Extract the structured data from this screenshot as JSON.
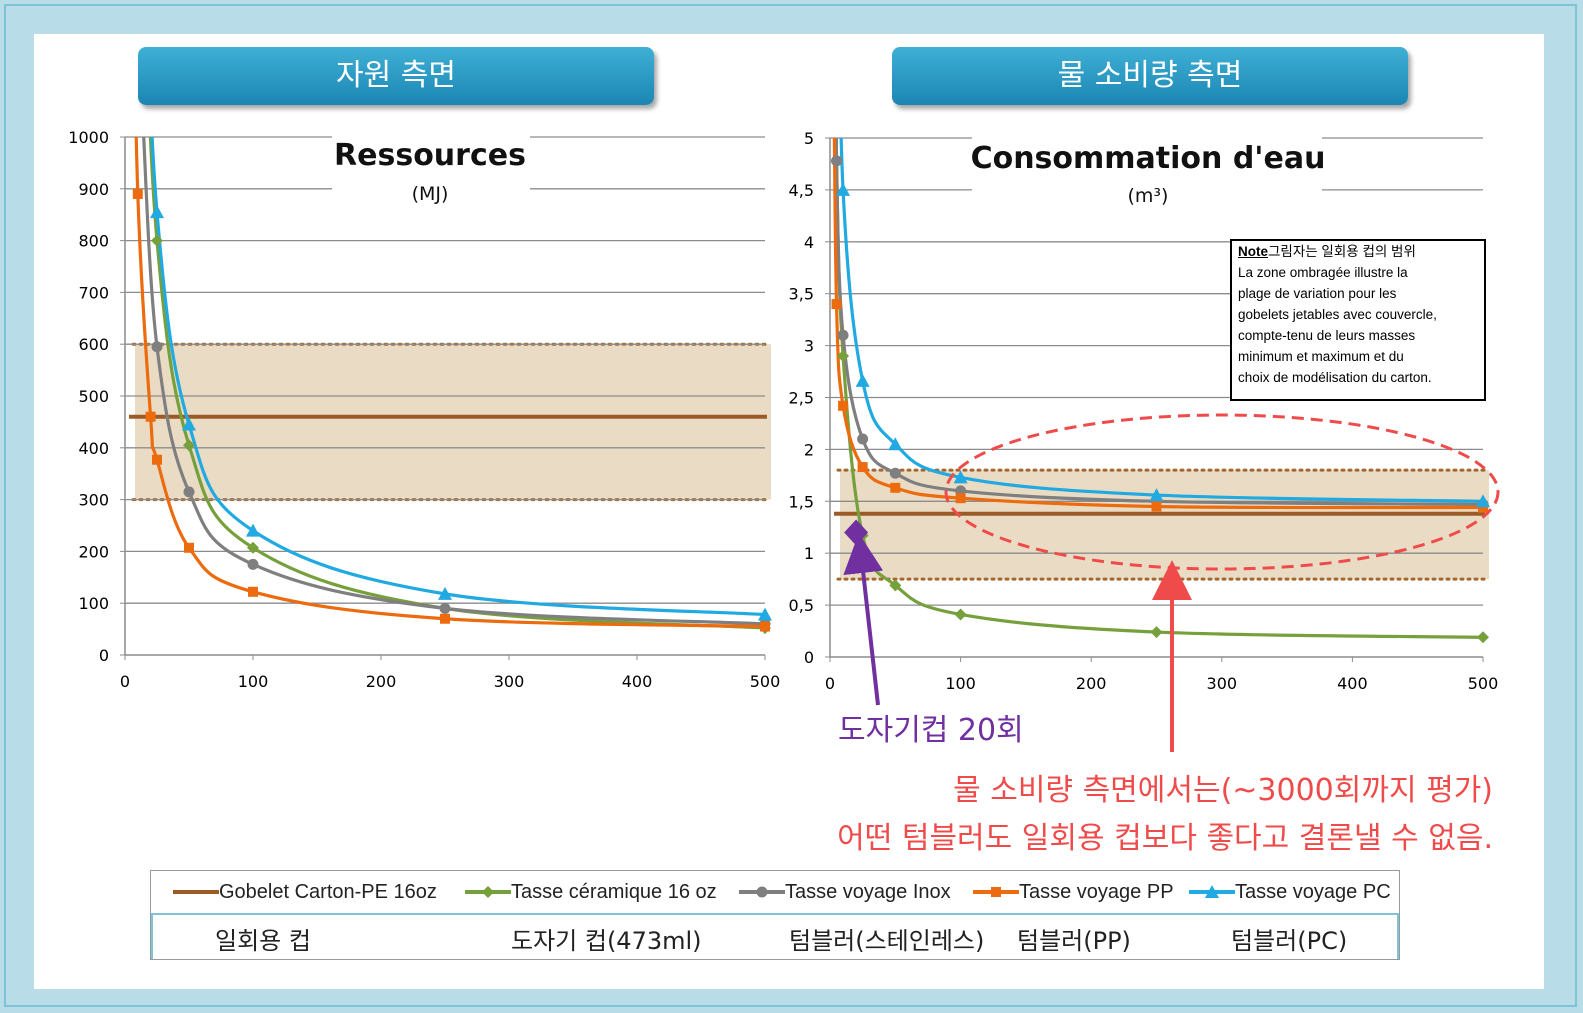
{
  "headers": {
    "left": "자원 측면",
    "right": "물 소비량 측면"
  },
  "note": {
    "label": "Note",
    "kr": "그림자는 일회용 컵의 범위",
    "lines": [
      "La zone ombragée illustre la",
      "plage de variation pour les",
      "gobelets jetables avec couvercle,",
      "compte-tenu de leurs masses",
      "minimum et maximum et du",
      "choix de modélisation du carton."
    ]
  },
  "annotations": {
    "ceramic_20": "도자기컵 20회",
    "water_line1": "물 소비량 측면에서는(~3000회까지 평가)",
    "water_line2": "어떤 텀블러도 일회용 컵보다 좋다고 결론낼 수 없음."
  },
  "legend": [
    {
      "name": "Gobelet Carton-PE 16oz",
      "kr": "일회용 컵",
      "color": "#9c5a24",
      "marker": "none"
    },
    {
      "name": "Tasse céramique 16 oz",
      "kr": "도자기 컵(473ml)",
      "color": "#76a03c",
      "marker": "diamond"
    },
    {
      "name": "Tasse voyage Inox",
      "kr": "텀블러(스테인레스)",
      "color": "#7f7f7f",
      "marker": "circle"
    },
    {
      "name": "Tasse voyage PP",
      "kr": "텀블러(PP)",
      "color": "#ed6b0f",
      "marker": "square"
    },
    {
      "name": "Tasse voyage PC",
      "kr": "텀블러(PC)",
      "color": "#21a9e1",
      "marker": "triangle"
    }
  ],
  "colors": {
    "shade": "#eadcc4",
    "shade_border": "#a5662f",
    "annotation_purple": "#7030a0",
    "annotation_red": "#f04b4b"
  },
  "chart_data": [
    {
      "type": "line",
      "title": "Ressources",
      "subtitle": "(MJ)",
      "xlabel": "",
      "ylabel": "",
      "xlim": [
        0,
        500
      ],
      "ylim": [
        0,
        1000
      ],
      "xticks": [
        0,
        100,
        200,
        300,
        400,
        500
      ],
      "xtick_labels": [
        "0",
        "100",
        "200",
        "300",
        "400",
        "500"
      ],
      "yticks": [
        0,
        100,
        200,
        300,
        400,
        500,
        600,
        700,
        800,
        900,
        1000
      ],
      "ytick_labels": [
        "0",
        "100",
        "200",
        "300",
        "400",
        "500",
        "600",
        "700",
        "800",
        "900",
        "1000"
      ],
      "shade_range": [
        300,
        600
      ],
      "baseline": {
        "name": "Gobelet Carton-PE 16oz",
        "value": 460
      },
      "series": [
        {
          "name": "Tasse céramique 16 oz",
          "x": [
            25,
            50,
            100,
            250,
            500
          ],
          "values": [
            800,
            405,
            207,
            90,
            52
          ]
        },
        {
          "name": "Tasse voyage Inox",
          "x": [
            25,
            50,
            100,
            250,
            500
          ],
          "values": [
            595,
            315,
            175,
            90,
            60
          ]
        },
        {
          "name": "Tasse voyage PP",
          "x": [
            10,
            20,
            25,
            50,
            100,
            250,
            500
          ],
          "values": [
            890,
            460,
            377,
            207,
            122,
            70,
            55
          ]
        },
        {
          "name": "Tasse voyage PC",
          "x": [
            25,
            50,
            100,
            250,
            500
          ],
          "values": [
            855,
            445,
            240,
            118,
            78
          ]
        }
      ]
    },
    {
      "type": "line",
      "title": "Consommation d'eau",
      "subtitle": "(m³)",
      "xlabel": "",
      "ylabel": "",
      "xlim": [
        0,
        500
      ],
      "ylim": [
        0,
        5
      ],
      "xticks": [
        0,
        100,
        200,
        300,
        400,
        500
      ],
      "xtick_labels": [
        "0",
        "100",
        "200",
        "300",
        "400",
        "500"
      ],
      "yticks": [
        0,
        0.5,
        1,
        1.5,
        2,
        2.5,
        3,
        3.5,
        4,
        4.5,
        5
      ],
      "ytick_labels": [
        "0",
        "0,5",
        "1",
        "1,5",
        "2",
        "2,5",
        "3",
        "3,5",
        "4",
        "4,5",
        "5"
      ],
      "shade_range": [
        0.75,
        1.8
      ],
      "baseline": {
        "name": "Gobelet Carton-PE 16oz",
        "value": 1.38
      },
      "highlight": {
        "name": "Tasse céramique 16 oz",
        "x": 20,
        "value": 1.2
      },
      "series": [
        {
          "name": "Tasse céramique 16 oz",
          "x": [
            5,
            10,
            25,
            50,
            100,
            250,
            500
          ],
          "values": [
            4.78,
            2.9,
            1.17,
            0.69,
            0.41,
            0.24,
            0.19
          ]
        },
        {
          "name": "Tasse voyage Inox",
          "x": [
            5,
            10,
            25,
            50,
            100,
            250,
            500
          ],
          "values": [
            4.78,
            3.1,
            2.1,
            1.77,
            1.6,
            1.5,
            1.47
          ]
        },
        {
          "name": "Tasse voyage PP",
          "x": [
            5,
            10,
            25,
            50,
            100,
            250,
            500
          ],
          "values": [
            3.4,
            2.42,
            1.83,
            1.63,
            1.53,
            1.45,
            1.44
          ]
        },
        {
          "name": "Tasse voyage PC",
          "x": [
            10,
            25,
            50,
            100,
            250,
            500
          ],
          "values": [
            4.5,
            2.66,
            2.05,
            1.73,
            1.56,
            1.5
          ]
        }
      ]
    }
  ]
}
